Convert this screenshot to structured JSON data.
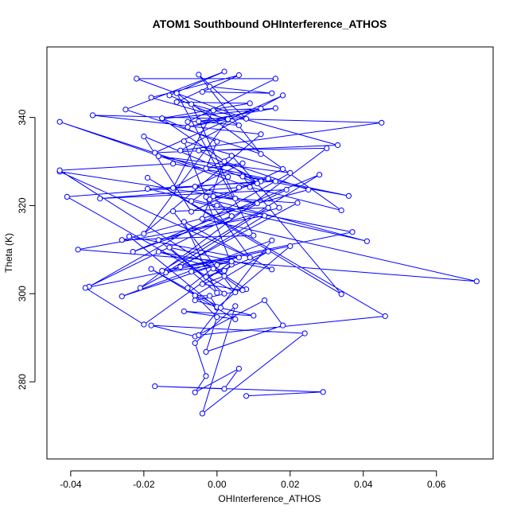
{
  "chart_data": {
    "type": "line",
    "title": "ATOM1 Southbound OHInterference_ATHOS",
    "xlabel": "OHInterference_ATHOS",
    "ylabel": "Theta (K)",
    "xlim": [
      -0.0465,
      0.0755
    ],
    "ylim": [
      262.5,
      356.0
    ],
    "xticks": [
      -0.04,
      -0.02,
      0.0,
      0.02,
      0.04,
      0.06
    ],
    "xtick_labels": [
      "-0.04",
      "-0.02",
      "0.00",
      "0.02",
      "0.04",
      "0.06"
    ],
    "yticks": [
      280,
      300,
      320,
      340
    ],
    "ytick_labels": [
      "280",
      "300",
      "320",
      "340"
    ],
    "grid": false,
    "legend": "none",
    "marker": "open-circle",
    "color": "#0000ff",
    "series": [
      {
        "x": [
          0.008,
          0.029,
          -0.017,
          0.002,
          0.006,
          -0.006,
          -0.003,
          -0.006,
          0.005,
          -0.004,
          0.024,
          -0.018,
          -0.006,
          0.013,
          0.018,
          -0.003,
          0.0,
          -0.008,
          0.0,
          -0.026,
          0.015,
          -0.005,
          0.046,
          -0.019,
          0.034,
          0.007,
          0.036,
          -0.016,
          0.02,
          -0.035,
          0.019,
          -0.032,
          0.006,
          0.014,
          -0.002,
          0.041,
          -0.007,
          0.003,
          -0.043,
          0.009,
          0.034,
          -0.011,
          0.01,
          -0.026,
          0.025,
          0.002,
          -0.004,
          0.071,
          -0.038,
          0.013,
          -0.01,
          0.006,
          -0.024,
          0.0,
          0.02,
          -0.036,
          -0.02,
          0.004,
          -0.014,
          0.014,
          -0.012,
          0.005,
          -0.041,
          0.012,
          -0.005,
          0.03,
          -0.021,
          0.022,
          -0.003,
          0.009,
          -0.043,
          0.005,
          -0.007,
          0.033,
          -0.017,
          0.018,
          -0.01,
          0.045,
          -0.034,
          0.012,
          -0.02,
          0.003,
          -0.008,
          0.016,
          -0.022,
          0.008,
          -0.005,
          0.012,
          -0.025,
          0.002,
          -0.013,
          0.006,
          -0.005,
          0.016,
          -0.015,
          0.011,
          -0.02,
          -0.007,
          0.018,
          -0.009,
          0.004,
          -0.016,
          0.002,
          -0.003,
          0.014,
          -0.006,
          -0.002,
          0.0,
          0.01,
          -0.009,
          0.005,
          -0.018,
          0.001,
          -0.006,
          0.008,
          -0.043,
          -0.012,
          0.016,
          -0.019,
          0.0,
          0.037,
          -0.015,
          0.028,
          -0.023,
          0.004,
          -0.001,
          0.011,
          -0.006,
          0.007,
          -0.003,
          0.0,
          -0.015,
          0.009,
          -0.011,
          -0.002,
          0.015,
          -0.004,
          0.006,
          -0.018,
          0.003,
          -0.008,
          0.012,
          -0.001,
          -0.012,
          0.004,
          0.017,
          -0.016,
          0.002,
          -0.013,
          0.015,
          -0.009,
          0.0,
          -0.007,
          0.004,
          0.002,
          -0.004,
          0.007,
          -0.001
        ],
        "y": [
          276.8,
          277.7,
          279.0,
          278.4,
          283.0,
          277.6,
          281.3,
          288.8,
          297.2,
          272.8,
          291.0,
          292.8,
          290.3,
          298.5,
          292.8,
          286.8,
          294.7,
          301.3,
          306.5,
          299.4,
          312.1,
          290.6,
          294.9,
          326.3,
          299.9,
          326.6,
          322.2,
          331.2,
          327.4,
          301.6,
          323.6,
          321.6,
          324.1,
          326.1,
          321.4,
          311.9,
          321.0,
          326.5,
          339.0,
          324.2,
          318.9,
          345.5,
          313.2,
          312.2,
          323.6,
          330.0,
          317.0,
          302.8,
          310.0,
          317.7,
          306.1,
          308.2,
          313.0,
          296.8,
          310.8,
          301.3,
          293.0,
          307.3,
          304.8,
          319.5,
          318.7,
          300.3,
          322.0,
          325.5,
          332.5,
          333.0,
          301.3,
          320.6,
          322.0,
          308.2,
          327.7,
          321.6,
          343.0,
          333.7,
          332.0,
          345.0,
          332.5,
          338.8,
          340.5,
          336.2,
          313.6,
          339.5,
          339.0,
          348.8,
          348.8,
          339.7,
          349.7,
          331.7,
          341.8,
          350.4,
          345.0,
          338.2,
          339.1,
          342.1,
          339.7,
          325.0,
          335.7,
          318.6,
          328.3,
          334.6,
          306.6,
          309.5,
          305.2,
          303.8,
          309.6,
          299.6,
          299.5,
          297.0,
          295.0,
          296.0,
          294.2,
          305.6,
          296.8,
          298.5,
          301.0,
          328.0,
          329.5,
          325.5,
          323.8,
          320.0,
          314.0,
          305.2,
          327.0,
          309.5,
          317.6,
          322.1,
          320.5,
          324.3,
          329.6,
          328.4,
          334.5,
          339.8,
          343.2,
          343.5,
          347.0,
          345.5,
          345.8,
          349.6,
          344.5,
          339.6,
          337.8,
          342.0,
          341.6,
          324.0,
          331.3,
          319.5,
          312.2,
          300.0,
          310.5,
          305.5,
          316.3,
          300.2,
          305.0,
          307.3,
          304.0,
          302.2,
          300.8,
          305.7
        ]
      }
    ]
  }
}
